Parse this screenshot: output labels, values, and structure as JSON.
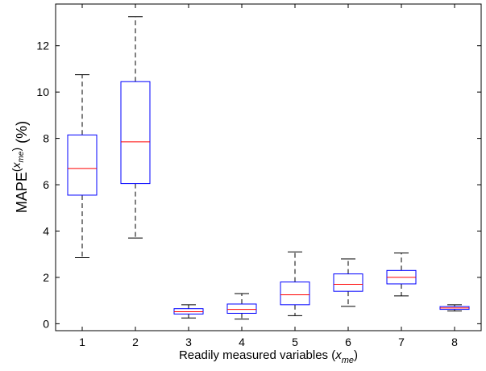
{
  "chart_data": {
    "type": "box",
    "xlabel": {
      "text": "Readily measured variables (",
      "var": "x",
      "sub": "me",
      "close": ")"
    },
    "ylabel": {
      "text": "MAPE",
      "sup_var": "x",
      "sup_sub": "me",
      "unit": "(%)"
    },
    "categories": [
      "1",
      "2",
      "3",
      "4",
      "5",
      "6",
      "7",
      "8"
    ],
    "xlim": [
      0.5,
      8.5
    ],
    "ylim": [
      -0.3,
      13.8
    ],
    "yticks": [
      0,
      2,
      4,
      6,
      8,
      10,
      12
    ],
    "grid": false,
    "colors": {
      "box": "#0000ff",
      "median": "#ff0000",
      "whisker": "#000000"
    },
    "boxes": [
      {
        "label": "1",
        "whisker_low": 2.85,
        "q1": 5.55,
        "median": 6.7,
        "q3": 8.15,
        "whisker_high": 10.75
      },
      {
        "label": "2",
        "whisker_low": 3.7,
        "q1": 6.05,
        "median": 7.85,
        "q3": 10.45,
        "whisker_high": 13.25
      },
      {
        "label": "3",
        "whisker_low": 0.25,
        "q1": 0.42,
        "median": 0.52,
        "q3": 0.65,
        "whisker_high": 0.82
      },
      {
        "label": "4",
        "whisker_low": 0.2,
        "q1": 0.45,
        "median": 0.62,
        "q3": 0.85,
        "whisker_high": 1.3
      },
      {
        "label": "5",
        "whisker_low": 0.35,
        "q1": 0.82,
        "median": 1.25,
        "q3": 1.8,
        "whisker_high": 3.1
      },
      {
        "label": "6",
        "whisker_low": 0.75,
        "q1": 1.4,
        "median": 1.7,
        "q3": 2.15,
        "whisker_high": 2.8
      },
      {
        "label": "7",
        "whisker_low": 1.2,
        "q1": 1.72,
        "median": 2.0,
        "q3": 2.3,
        "whisker_high": 3.05
      },
      {
        "label": "8",
        "whisker_low": 0.55,
        "q1": 0.62,
        "median": 0.68,
        "q3": 0.74,
        "whisker_high": 0.82
      }
    ]
  }
}
